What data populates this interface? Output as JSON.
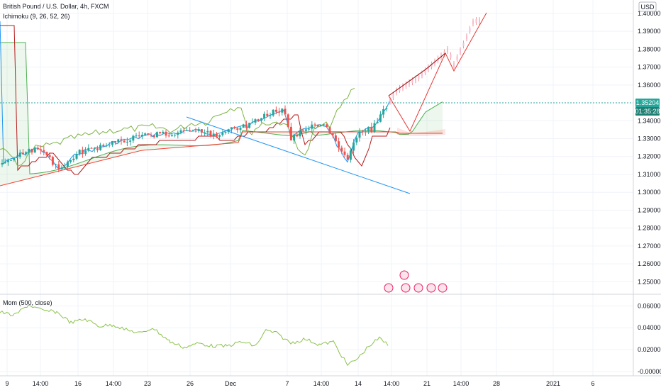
{
  "header": {
    "title": "British Pound / U.S. Dollar, 4h, FXCM",
    "indicator": "Ichimoku (9, 26, 52, 26)",
    "currency_badge": "USD"
  },
  "price_badges": {
    "current_price": "1.35204",
    "countdown": "01:35:28"
  },
  "momentum_panel": {
    "label": "Mom (500, close)"
  },
  "colors": {
    "up_candle": "#26a69a",
    "down_candle": "#ef5350",
    "tenkan": "#2196f3",
    "kijun": "#b71c1c",
    "span_a": "#4caf50",
    "span_b": "#f44336",
    "chikou": "#7cb342",
    "trendline": "#2196f3",
    "projection": "#e53935",
    "momentum": "#8bc34a",
    "price_badge": "#26a69a",
    "countdown_badge": "#1e7f74"
  },
  "chart_data": [
    {
      "type": "candlestick",
      "title": "British Pound / U.S. Dollar, 4h, FXCM",
      "ylim": [
        1.243,
        1.4075
      ],
      "y_ticks": [
        "1.40000",
        "1.39000",
        "1.38000",
        "1.37000",
        "1.36000",
        "1.34000",
        "1.33000",
        "1.32000",
        "1.31000",
        "1.30000",
        "1.29000",
        "1.28000",
        "1.27000",
        "1.26000",
        "1.25000"
      ],
      "x_ticks": [
        "9",
        "14:00",
        "16",
        "14:00",
        "23",
        "26",
        "Dec",
        "7",
        "14:00",
        "14",
        "14:00",
        "21",
        "14:00",
        "28",
        "2021",
        "6"
      ],
      "series_hint": "Ichimoku cloud with tenkan, kijun, spans and lagging line",
      "annotations": [
        "descending trendline",
        "projected price path"
      ]
    },
    {
      "type": "line",
      "title": "Mom (500, close)",
      "ylim": [
        -0.004,
        0.07
      ],
      "y_ticks": [
        "0.06000",
        "0.04000",
        "0.02000",
        "-0.00000"
      ]
    }
  ]
}
